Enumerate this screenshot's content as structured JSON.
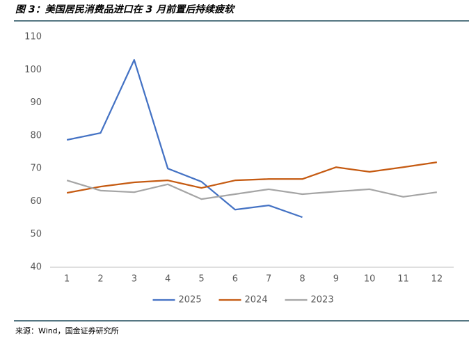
{
  "chart_data": {
    "type": "line",
    "title": "图 3：美国居民消费品进口在 3 月前置后持续疲软",
    "source": "来源：Wind，国金证券研究所",
    "categories": [
      "1",
      "2",
      "3",
      "4",
      "5",
      "6",
      "7",
      "8",
      "9",
      "10",
      "11",
      "12"
    ],
    "series": [
      {
        "name": "2025",
        "color": "#4472c4",
        "values": [
          78.7,
          80.8,
          103,
          70,
          66,
          57.5,
          58.8,
          55.2,
          null,
          null,
          null,
          null
        ]
      },
      {
        "name": "2024",
        "color": "#c55a11",
        "values": [
          62.6,
          64.5,
          65.8,
          66.4,
          64.1,
          66.4,
          66.8,
          66.8,
          70.4,
          69,
          70.4,
          71.9
        ]
      },
      {
        "name": "2023",
        "color": "#a5a5a5",
        "values": [
          66.4,
          63.3,
          62.8,
          65.2,
          60.7,
          62.2,
          63.7,
          62.2,
          63,
          63.7,
          61.4,
          62.8
        ]
      }
    ],
    "ylim": [
      40,
      110
    ],
    "yticks": [
      40,
      50,
      60,
      70,
      80,
      90,
      100,
      110
    ],
    "grid": false,
    "legend": "bottom"
  }
}
